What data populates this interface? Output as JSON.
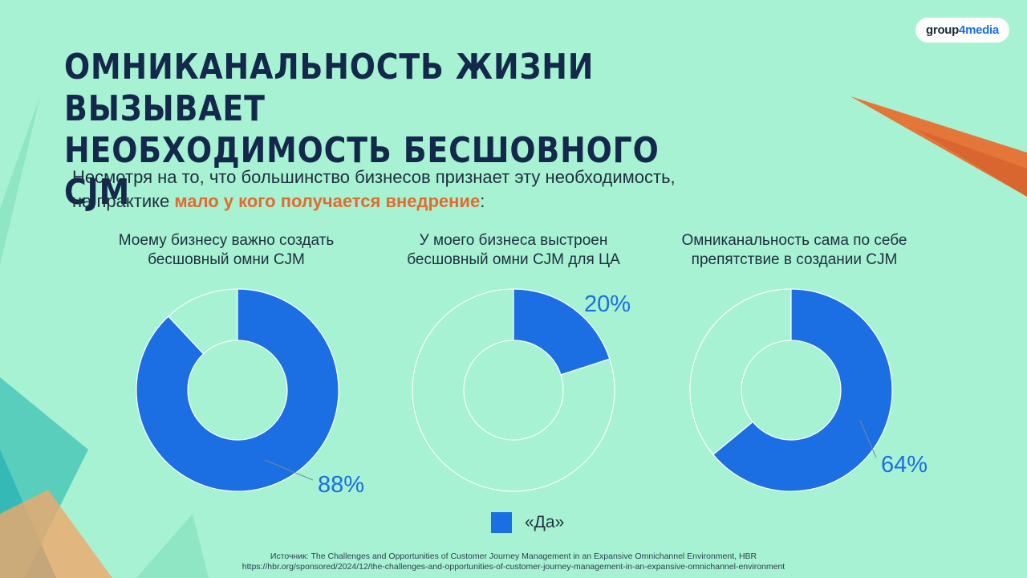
{
  "logo": {
    "text_main": "group",
    "text_accent": "4media"
  },
  "title_line1": "Омниканальность жизни вызывает",
  "title_line2": "необходимость бесшовного CJM",
  "subtitle": {
    "line1": "Несмотря на то, что большинство бизнесов признает эту необходимость,",
    "line2_prefix": "на практике ",
    "line2_highlight": "мало у кого получается внедрение",
    "line2_suffix": ":"
  },
  "colors": {
    "yes": "#1b6fe3",
    "rest": "#a6f2d3",
    "highlight": "#e56a2d",
    "title": "#14284b"
  },
  "chart_data": [
    {
      "type": "pie",
      "title_line1": "Моему бизнесу важно создать",
      "title_line2": "бесшовный омни CJM",
      "slices": [
        {
          "label": "«Да»",
          "value": 88
        },
        {
          "label": "",
          "value": 12
        }
      ],
      "value_label": "88%"
    },
    {
      "type": "pie",
      "title_line1": "У моего бизнеса выстроен",
      "title_line2": "бесшовный омни CJM для ЦА",
      "slices": [
        {
          "label": "«Да»",
          "value": 20
        },
        {
          "label": "",
          "value": 80
        }
      ],
      "value_label": "20%"
    },
    {
      "type": "pie",
      "title_line1": "Омниканальность сама по себе",
      "title_line2": "препятствие в создании CJM",
      "slices": [
        {
          "label": "«Да»",
          "value": 64
        },
        {
          "label": "",
          "value": 36
        }
      ],
      "value_label": "64%"
    }
  ],
  "legend": {
    "label": "«Да»"
  },
  "source": {
    "line1": "Источник: The Challenges and Opportunities of Customer Journey Management in an Expansive Omnichannel Environment, HBR",
    "line2": "https://hbr.org/sponsored/2024/12/the-challenges-and-opportunities-of-customer-journey-management-in-an-expansive-omnichannel-environment"
  }
}
